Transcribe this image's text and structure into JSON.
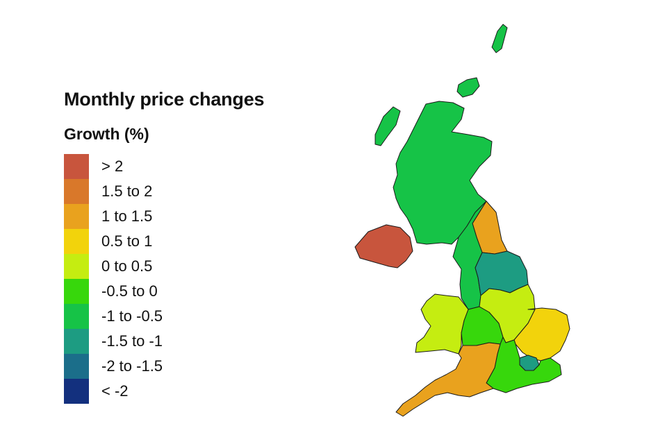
{
  "title": "Monthly price changes",
  "subtitle": "Growth (%)",
  "legend": [
    {
      "label": "> 2",
      "color": "#c8553d"
    },
    {
      "label": "1.5 to 2",
      "color": "#d9782a"
    },
    {
      "label": "1 to 1.5",
      "color": "#e9a21e"
    },
    {
      "label": "0.5 to 1",
      "color": "#f2d30c"
    },
    {
      "label": "0 to 0.5",
      "color": "#c5ed11"
    },
    {
      "label": "-0.5 to 0",
      "color": "#37d70c"
    },
    {
      "label": "-1 to -0.5",
      "color": "#16c347"
    },
    {
      "label": "-1.5 to -1",
      "color": "#1d9c82"
    },
    {
      "label": "-2 to -1.5",
      "color": "#1b6e8a"
    },
    {
      "label": "< -2",
      "color": "#13307e"
    }
  ],
  "regions": [
    {
      "name": "Scotland",
      "band": "-1 to -0.5"
    },
    {
      "name": "Northern Ireland",
      "band": "> 2"
    },
    {
      "name": "North East",
      "band": "1 to 1.5"
    },
    {
      "name": "North West",
      "band": "-1 to -0.5"
    },
    {
      "name": "Yorkshire and The Humber",
      "band": "-1.5 to -1"
    },
    {
      "name": "Wales",
      "band": "0 to 0.5"
    },
    {
      "name": "West Midlands",
      "band": "-0.5 to 0"
    },
    {
      "name": "East Midlands",
      "band": "0 to 0.5"
    },
    {
      "name": "East of England",
      "band": "0.5 to 1"
    },
    {
      "name": "London",
      "band": "-1.5 to -1"
    },
    {
      "name": "South East",
      "band": "-0.5 to 0"
    },
    {
      "name": "South West",
      "band": "1 to 1.5"
    }
  ]
}
